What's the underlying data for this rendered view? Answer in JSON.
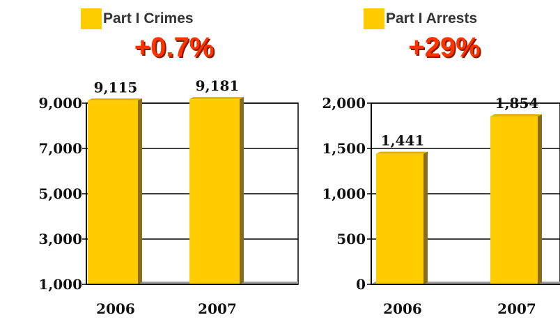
{
  "colors": {
    "bar": "#ffcc00",
    "bar_side": "#8a6d1a",
    "floor": "#9e9e9e",
    "change": "#ff3300"
  },
  "chart_data": [
    {
      "type": "bar",
      "legend": "Part I Crimes",
      "change": "+0.7%",
      "categories": [
        "2006",
        "2007"
      ],
      "values": [
        9115,
        9181
      ],
      "value_labels": [
        "9,115",
        "9,181"
      ],
      "yticks": [
        "1,000",
        "3,000",
        "5,000",
        "7,000",
        "9,000"
      ],
      "ytick_values": [
        1000,
        3000,
        5000,
        7000,
        9000
      ],
      "ylim": [
        1000,
        9000
      ],
      "grid": true
    },
    {
      "type": "bar",
      "legend": "Part I Arrests",
      "change": "+29%",
      "categories": [
        "2006",
        "2007"
      ],
      "values": [
        1441,
        1854
      ],
      "value_labels": [
        "1,441",
        "1,854"
      ],
      "yticks": [
        "0",
        "500",
        "1,000",
        "1,500",
        "2,000"
      ],
      "ytick_values": [
        0,
        500,
        1000,
        1500,
        2000
      ],
      "ylim": [
        0,
        2000
      ],
      "grid": true
    }
  ]
}
